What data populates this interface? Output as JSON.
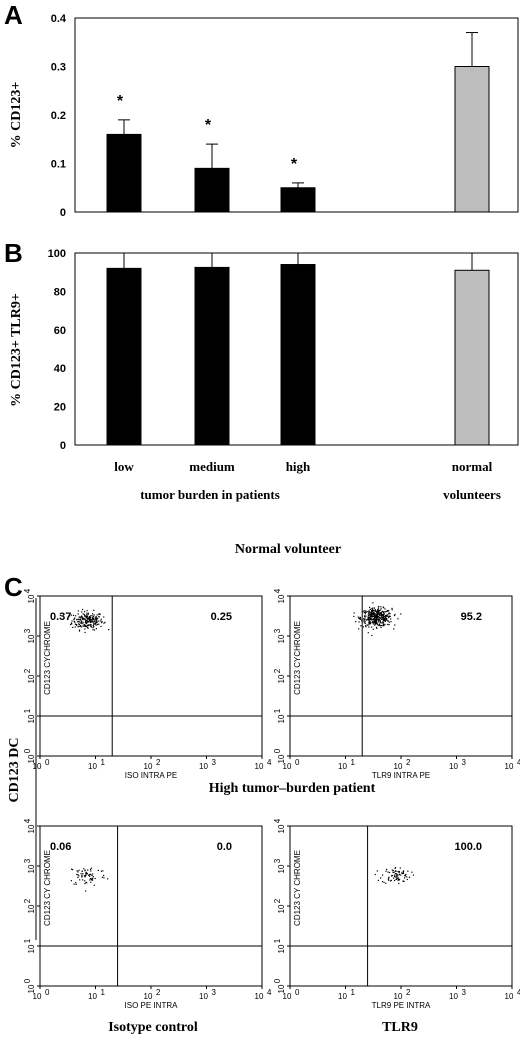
{
  "chart_data": [
    {
      "panel": "A",
      "type": "bar",
      "ylabel": "% CD123+",
      "categories": [
        "low",
        "medium",
        "high",
        "normal"
      ],
      "values": [
        0.16,
        0.09,
        0.05,
        0.3
      ],
      "errors": [
        0.03,
        0.05,
        0.01,
        0.07
      ],
      "significant": [
        "*",
        "*",
        "*",
        ""
      ],
      "bar_colors": [
        "#000000",
        "#000000",
        "#000000",
        "#bdbdbd"
      ],
      "ylim": [
        0,
        0.4
      ],
      "yticks": [
        "0",
        "0.1",
        "0.2",
        "0.3",
        "0.4"
      ]
    },
    {
      "panel": "B",
      "type": "bar",
      "ylabel": "% CD123+ TLR9+",
      "categories": [
        "low",
        "medium",
        "high",
        "normal"
      ],
      "values": [
        92,
        92.5,
        94,
        91
      ],
      "errors": [
        8,
        7.5,
        6,
        9
      ],
      "bar_colors": [
        "#000000",
        "#000000",
        "#000000",
        "#bdbdbd"
      ],
      "ylim": [
        0,
        100
      ],
      "yticks": [
        "0",
        "20",
        "40",
        "60",
        "80",
        "100"
      ],
      "xlabels": [
        "low",
        "medium",
        "high",
        "normal"
      ],
      "group_labels": [
        "tumor burden in patients",
        "volunteers"
      ]
    },
    {
      "panel": "C",
      "type": "scatter",
      "section_titles": [
        "Normal volunteer",
        "High tumor–burden patient"
      ],
      "side_label": "CD123 DC",
      "column_labels": [
        "Isotype control",
        "TLR9"
      ],
      "plots": [
        {
          "ylabel": "CD123 CYCHROME",
          "xlabel": "ISO INTRA PE",
          "upper_left": "0.37",
          "upper_right": "0.25",
          "cluster": [
            7,
            2500
          ],
          "n": 220,
          "spread": 0.14
        },
        {
          "ylabel": "CD123 CYCHROME",
          "xlabel": "TLR9 INTRA PE",
          "upper_left": "",
          "upper_right": "95.2",
          "cluster": [
            35,
            3000
          ],
          "n": 380,
          "spread": 0.14
        },
        {
          "ylabel": "CD123 CY CHROME",
          "xlabel": "ISO PE INTRA",
          "upper_left": "0.06",
          "upper_right": "0.0",
          "cluster": [
            7,
            600
          ],
          "n": 70,
          "spread": 0.17
        },
        {
          "ylabel": "CD123 CY CHROME",
          "xlabel": "TLR9 PE INTRA",
          "upper_left": "",
          "upper_right": "100.0",
          "cluster": [
            80,
            600
          ],
          "n": 80,
          "spread": 0.13
        }
      ],
      "axis_ticks": [
        "10",
        "1",
        "2",
        "3",
        "4"
      ]
    }
  ],
  "labels": {
    "a": "A",
    "b": "B",
    "c": "C",
    "star": "*"
  }
}
